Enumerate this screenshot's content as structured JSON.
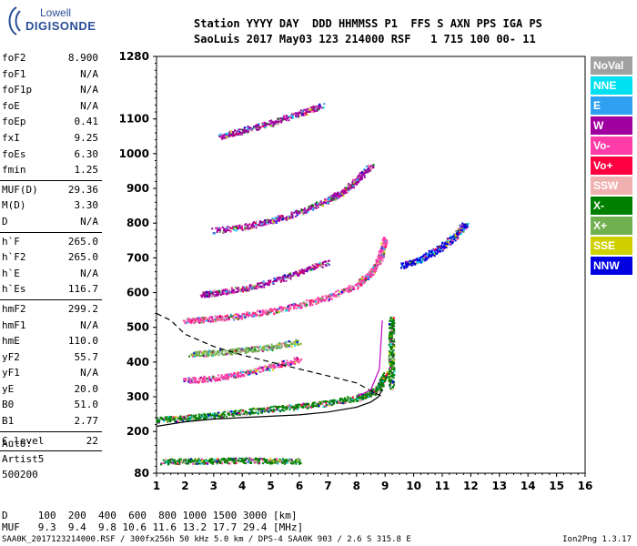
{
  "logo": {
    "line1": "Lowell",
    "line2": "DIGISONDE"
  },
  "header": {
    "line1": "Station YYYY DAY  DDD HHMMSS P1  FFS S AXN PPS IGA PS",
    "line2": "SaoLuis 2017 May03 123 214000 RSF   1 715 100 00- 11"
  },
  "params": [
    {
      "k": "foF2",
      "v": "8.900"
    },
    {
      "k": "foF1",
      "v": "N/A"
    },
    {
      "k": "foF1p",
      "v": "N/A"
    },
    {
      "k": "foE",
      "v": "N/A"
    },
    {
      "k": "foEp",
      "v": "0.41"
    },
    {
      "k": "fxI",
      "v": "9.25"
    },
    {
      "k": "foEs",
      "v": "6.30"
    },
    {
      "k": "fmin",
      "v": "1.25",
      "sep": true
    },
    {
      "k": "MUF(D)",
      "v": "29.36"
    },
    {
      "k": "M(D)",
      "v": "3.30"
    },
    {
      "k": "D",
      "v": "N/A",
      "sep": true
    },
    {
      "k": "h`F",
      "v": "265.0"
    },
    {
      "k": "h`F2",
      "v": "265.0"
    },
    {
      "k": "h`E",
      "v": "N/A"
    },
    {
      "k": "h`Es",
      "v": "116.7",
      "sep": true
    },
    {
      "k": "hmF2",
      "v": "299.2"
    },
    {
      "k": "hmF1",
      "v": "N/A"
    },
    {
      "k": "hmE",
      "v": "110.0"
    },
    {
      "k": "yF2",
      "v": "55.7"
    },
    {
      "k": "yF1",
      "v": "N/A"
    },
    {
      "k": "yE",
      "v": "20.0"
    },
    {
      "k": "B0",
      "v": "51.0"
    },
    {
      "k": "B1",
      "v": "2.77",
      "sep": true
    },
    {
      "k": "C-level",
      "v": "22",
      "sep": true
    }
  ],
  "auto": {
    "line1": "Auto:",
    "line2": "Artist5",
    "line3": "500200"
  },
  "legend": [
    {
      "label": "NoVal",
      "color": "#a0a0a0"
    },
    {
      "label": "NNE",
      "color": "#00e0f0"
    },
    {
      "label": "E",
      "color": "#30a0f0"
    },
    {
      "label": "W",
      "color": "#a000a0"
    },
    {
      "label": "Vo-",
      "color": "#ff3ca8"
    },
    {
      "label": "Vo+",
      "color": "#ff0040"
    },
    {
      "label": "SSW",
      "color": "#f0b0b0"
    },
    {
      "label": "X-",
      "color": "#008000"
    },
    {
      "label": "X+",
      "color": "#70b050"
    },
    {
      "label": "SSE",
      "color": "#d0d000"
    },
    {
      "label": "NNW",
      "color": "#0000e0"
    }
  ],
  "dmuf": {
    "d_line": "D     100  200  400  600  800 1000 1500 3000 [km]",
    "muf_line": "MUF   9.3  9.4  9.8 10.6 11.6 13.2 17.7 29.4 [MHz]"
  },
  "footer": {
    "text": "SAA0K_2017123214000.RSF / 300fx256h 50 kHz 5.0 km / DPS-4 SAA0K 903 / 2.6 S 315.8 E",
    "version": "Ion2Png 1.3.17"
  },
  "chart_data": {
    "type": "scatter",
    "title": "",
    "xlabel": "",
    "ylabel": "",
    "xlim": [
      1,
      16
    ],
    "ylim": [
      80,
      1280
    ],
    "x_ticks": [
      1,
      2,
      3,
      4,
      5,
      6,
      7,
      8,
      9,
      10,
      11,
      12,
      13,
      14,
      15,
      16
    ],
    "y_ticks": [
      80,
      200,
      300,
      400,
      500,
      600,
      700,
      800,
      900,
      1000,
      1100,
      1280
    ],
    "grid": false,
    "traces": [
      {
        "name": "F-trace-1",
        "color": "#008000",
        "x": [
          1.0,
          2.0,
          3.0,
          4.0,
          5.0,
          6.0,
          7.0,
          8.0,
          8.5,
          8.8,
          9.0
        ],
        "y": [
          235,
          240,
          248,
          258,
          266,
          274,
          284,
          298,
          312,
          330,
          370
        ]
      },
      {
        "name": "F-trace-2",
        "color": "#ff3ca8",
        "x": [
          2.0,
          3.0,
          4.0,
          5.0,
          6.0,
          7.0,
          8.0,
          8.5,
          8.8,
          9.0
        ],
        "y": [
          520,
          526,
          535,
          548,
          565,
          588,
          622,
          660,
          700,
          760
        ]
      },
      {
        "name": "F-trace-3",
        "color": "#a000a0",
        "x": [
          3.0,
          4.0,
          5.0,
          6.0,
          7.0,
          7.5,
          8.0,
          8.5
        ],
        "y": [
          780,
          790,
          808,
          832,
          868,
          892,
          925,
          970
        ]
      },
      {
        "name": "F-trace-4",
        "color": "#a000a0",
        "x": [
          3.2,
          4.0,
          5.0,
          6.0,
          6.8
        ],
        "y": [
          1050,
          1068,
          1090,
          1118,
          1140
        ]
      },
      {
        "name": "Es-trace",
        "color": "#008000",
        "x": [
          1.2,
          2.0,
          3.0,
          4.0,
          5.0,
          6.0
        ],
        "y": [
          115,
          116,
          117,
          118,
          117,
          116
        ]
      },
      {
        "name": "F-trace-1b",
        "color": "#ff3ca8",
        "x": [
          2.0,
          3.0,
          4.0,
          5.0,
          6.0
        ],
        "y": [
          348,
          355,
          368,
          388,
          410
        ]
      },
      {
        "name": "F-trace-2b",
        "color": "#70b050",
        "x": [
          2.2,
          3.0,
          4.0,
          5.0,
          6.0
        ],
        "y": [
          425,
          428,
          435,
          445,
          460
        ]
      },
      {
        "name": "F-trace-5",
        "color": "#a000a0",
        "x": [
          2.6,
          3.0,
          4.0,
          5.0,
          6.0,
          7.0
        ],
        "y": [
          596,
          600,
          612,
          632,
          660,
          690
        ]
      },
      {
        "name": "X-trace",
        "color": "#0000e0",
        "x": [
          9.6,
          10.0,
          10.5,
          11.0,
          11.5,
          11.8
        ],
        "y": [
          680,
          690,
          710,
          735,
          770,
          800
        ]
      },
      {
        "name": "X-trace-vertical",
        "color": "#008000",
        "x": [
          9.2,
          9.2,
          9.2,
          9.2
        ],
        "y": [
          330,
          400,
          470,
          530
        ]
      }
    ],
    "profile_curves": [
      {
        "name": "solid-profile",
        "style": "solid",
        "x": [
          1.0,
          2.0,
          3.0,
          4.0,
          5.0,
          6.0,
          7.0,
          8.0,
          8.5,
          8.75,
          8.9
        ],
        "y": [
          215,
          228,
          236,
          240,
          244,
          248,
          256,
          270,
          285,
          299,
          320
        ]
      },
      {
        "name": "dashed-profile",
        "style": "dashed",
        "x": [
          1.0,
          1.5,
          2.0,
          3.0,
          4.0,
          5.0,
          6.0,
          7.0,
          8.0,
          8.9
        ],
        "y": [
          540,
          520,
          480,
          445,
          420,
          400,
          380,
          360,
          340,
          300
        ]
      },
      {
        "name": "magenta-profile",
        "style": "solid",
        "color": "#c000c0",
        "x": [
          8.0,
          8.5,
          8.8,
          8.9
        ],
        "y": [
          300,
          320,
          380,
          520
        ]
      }
    ]
  }
}
